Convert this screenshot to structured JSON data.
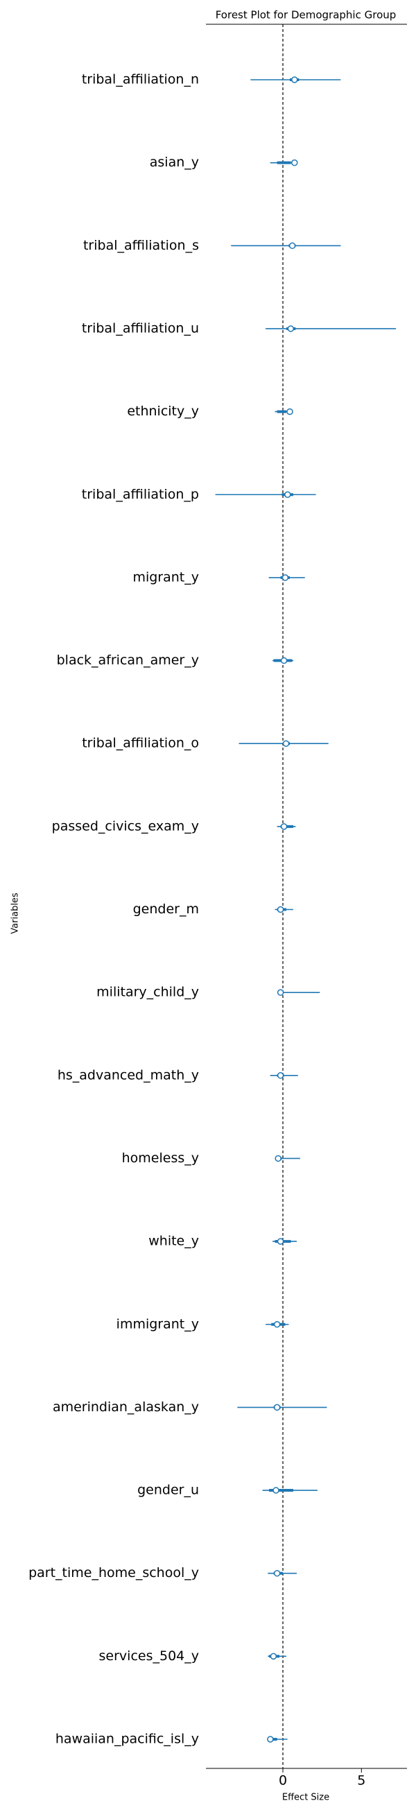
{
  "chart_data": {
    "type": "forest",
    "title": "Forest Plot for Demographic Group",
    "x_label": "Effect Size",
    "y_label": "Variables",
    "categories": [
      "tribal_affiliation_n",
      "asian_y",
      "tribal_affiliation_s",
      "tribal_affiliation_u",
      "ethnicity_y",
      "tribal_affiliation_p",
      "migrant_y",
      "black_african_amer_y",
      "tribal_affiliation_o",
      "passed_civics_exam_y",
      "gender_m",
      "military_child_y",
      "hs_advanced_math_y",
      "homeless_y",
      "white_y",
      "immigrant_y",
      "amerindian_alaskan_y",
      "gender_u",
      "part_time_home_school_y",
      "services_504_y",
      "hawaiian_pacific_isl_y"
    ],
    "values": [
      0.74,
      0.74,
      0.6,
      0.5,
      0.44,
      0.3,
      0.15,
      0.07,
      0.2,
      0.07,
      -0.15,
      -0.15,
      -0.15,
      -0.3,
      -0.15,
      -0.37,
      -0.37,
      -0.44,
      -0.37,
      -0.6,
      -0.8
    ],
    "lower": [
      -2.06,
      -0.81,
      -3.3,
      -1.1,
      -0.51,
      -4.3,
      -0.9,
      -0.66,
      -2.8,
      -0.37,
      -0.51,
      -0.2,
      -0.81,
      -0.5,
      -0.66,
      -1.1,
      -2.9,
      -1.3,
      -0.96,
      -0.96,
      -0.88
    ],
    "upper": [
      3.68,
      0.81,
      3.68,
      7.2,
      0.44,
      2.1,
      1.4,
      0.66,
      2.9,
      0.81,
      0.66,
      2.35,
      0.96,
      1.1,
      0.88,
      0.37,
      2.8,
      2.2,
      0.88,
      0.22,
      0.29
    ],
    "inner_lower": [
      0.44,
      -0.37,
      0.37,
      0.22,
      -0.37,
      -0.07,
      -0.15,
      -0.59,
      0,
      -0.15,
      -0.37,
      -0.22,
      -0.37,
      -0.44,
      -0.51,
      -0.74,
      -0.59,
      -0.88,
      -0.59,
      -0.88,
      -0.88
    ],
    "inner_upper": [
      1.03,
      0.51,
      0.81,
      0.81,
      0.22,
      0.66,
      0.44,
      0.59,
      0.44,
      0.66,
      0.22,
      0,
      0.07,
      -0.07,
      0.51,
      0.15,
      -0.15,
      0.66,
      0,
      -0.22,
      -0.37
    ],
    "color": "#1f77b4",
    "xlim": [
      -4.9,
      7.9
    ],
    "xticks": [
      0,
      5
    ],
    "reference_line": 0
  }
}
